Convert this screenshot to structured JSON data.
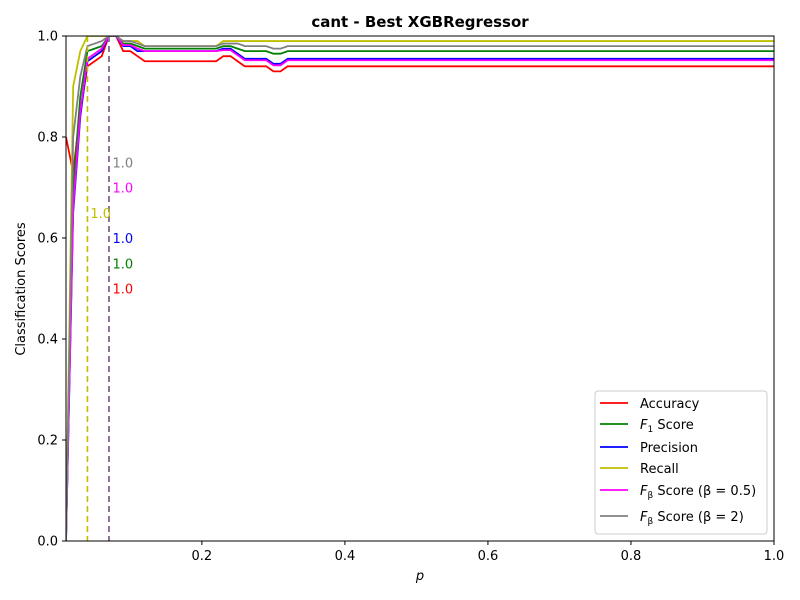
{
  "chart_data": {
    "type": "line",
    "title": "cant - Best XGBRegressor",
    "xlabel": "p",
    "ylabel": "Classification Scores",
    "xlim": [
      0.01,
      1.0
    ],
    "ylim": [
      0.0,
      1.0
    ],
    "x_ticks": [
      "0.2",
      "0.4",
      "0.6",
      "0.8",
      "1.0"
    ],
    "y_ticks": [
      "0.0",
      "0.2",
      "0.4",
      "0.6",
      "0.8",
      "1.0"
    ],
    "grid": false,
    "legend_position": "lower-right",
    "series": [
      {
        "name": "Accuracy",
        "color": "#ff0000",
        "points": [
          [
            0.01,
            0.8
          ],
          [
            0.02,
            0.73
          ],
          [
            0.03,
            0.85
          ],
          [
            0.04,
            0.94
          ],
          [
            0.05,
            0.95
          ],
          [
            0.06,
            0.96
          ],
          [
            0.07,
            1.0
          ],
          [
            0.08,
            1.0
          ],
          [
            0.09,
            0.97
          ],
          [
            0.1,
            0.97
          ],
          [
            0.11,
            0.96
          ],
          [
            0.12,
            0.95
          ],
          [
            0.15,
            0.95
          ],
          [
            0.2,
            0.95
          ],
          [
            0.22,
            0.95
          ],
          [
            0.23,
            0.96
          ],
          [
            0.24,
            0.96
          ],
          [
            0.25,
            0.95
          ],
          [
            0.26,
            0.94
          ],
          [
            0.29,
            0.94
          ],
          [
            0.3,
            0.93
          ],
          [
            0.31,
            0.93
          ],
          [
            0.32,
            0.94
          ],
          [
            0.4,
            0.94
          ],
          [
            0.6,
            0.94
          ],
          [
            0.8,
            0.94
          ],
          [
            1.0,
            0.94
          ]
        ]
      },
      {
        "name": "$F_1$ Score",
        "legend_label_main": "F",
        "legend_label_sub": "1",
        "legend_label_rest": " Score",
        "color": "#008000",
        "points": [
          [
            0.01,
            0.0
          ],
          [
            0.02,
            0.7
          ],
          [
            0.03,
            0.88
          ],
          [
            0.04,
            0.97
          ],
          [
            0.05,
            0.975
          ],
          [
            0.06,
            0.98
          ],
          [
            0.07,
            1.0
          ],
          [
            0.08,
            1.0
          ],
          [
            0.09,
            0.985
          ],
          [
            0.1,
            0.985
          ],
          [
            0.11,
            0.98
          ],
          [
            0.12,
            0.975
          ],
          [
            0.15,
            0.975
          ],
          [
            0.2,
            0.975
          ],
          [
            0.22,
            0.975
          ],
          [
            0.23,
            0.98
          ],
          [
            0.24,
            0.98
          ],
          [
            0.25,
            0.975
          ],
          [
            0.26,
            0.97
          ],
          [
            0.29,
            0.97
          ],
          [
            0.3,
            0.965
          ],
          [
            0.31,
            0.965
          ],
          [
            0.32,
            0.97
          ],
          [
            0.4,
            0.97
          ],
          [
            0.6,
            0.97
          ],
          [
            0.8,
            0.97
          ],
          [
            1.0,
            0.97
          ]
        ]
      },
      {
        "name": "Precision",
        "color": "#0000ff",
        "points": [
          [
            0.01,
            0.0
          ],
          [
            0.02,
            0.65
          ],
          [
            0.03,
            0.84
          ],
          [
            0.04,
            0.95
          ],
          [
            0.05,
            0.96
          ],
          [
            0.06,
            0.97
          ],
          [
            0.07,
            1.0
          ],
          [
            0.08,
            1.0
          ],
          [
            0.09,
            0.98
          ],
          [
            0.1,
            0.98
          ],
          [
            0.11,
            0.97
          ],
          [
            0.12,
            0.97
          ],
          [
            0.15,
            0.97
          ],
          [
            0.2,
            0.97
          ],
          [
            0.22,
            0.97
          ],
          [
            0.23,
            0.975
          ],
          [
            0.24,
            0.975
          ],
          [
            0.25,
            0.965
          ],
          [
            0.26,
            0.955
          ],
          [
            0.29,
            0.955
          ],
          [
            0.3,
            0.945
          ],
          [
            0.31,
            0.945
          ],
          [
            0.32,
            0.955
          ],
          [
            0.4,
            0.955
          ],
          [
            0.6,
            0.955
          ],
          [
            0.8,
            0.955
          ],
          [
            1.0,
            0.955
          ]
        ]
      },
      {
        "name": "Recall",
        "color": "#bfbf00",
        "points": [
          [
            0.01,
            0.0
          ],
          [
            0.02,
            0.9
          ],
          [
            0.03,
            0.97
          ],
          [
            0.04,
            1.0
          ],
          [
            0.05,
            1.0
          ],
          [
            0.06,
            1.0
          ],
          [
            0.07,
            1.0
          ],
          [
            0.08,
            1.0
          ],
          [
            0.09,
            0.99
          ],
          [
            0.1,
            0.99
          ],
          [
            0.11,
            0.99
          ],
          [
            0.12,
            0.98
          ],
          [
            0.15,
            0.98
          ],
          [
            0.2,
            0.98
          ],
          [
            0.22,
            0.98
          ],
          [
            0.23,
            0.99
          ],
          [
            0.24,
            0.99
          ],
          [
            0.25,
            0.99
          ],
          [
            0.26,
            0.99
          ],
          [
            0.29,
            0.99
          ],
          [
            0.3,
            0.99
          ],
          [
            0.31,
            0.99
          ],
          [
            0.32,
            0.99
          ],
          [
            0.4,
            0.99
          ],
          [
            0.6,
            0.99
          ],
          [
            0.8,
            0.99
          ],
          [
            1.0,
            0.99
          ]
        ]
      },
      {
        "name": "$F_\\beta$ Score ($\\beta=0.5$)",
        "legend_label_main": "F",
        "legend_label_sub": "β",
        "legend_label_rest": " Score (β = 0.5)",
        "color": "#ff00ff",
        "points": [
          [
            0.01,
            0.0
          ],
          [
            0.02,
            0.66
          ],
          [
            0.03,
            0.85
          ],
          [
            0.04,
            0.955
          ],
          [
            0.05,
            0.965
          ],
          [
            0.06,
            0.975
          ],
          [
            0.07,
            1.0
          ],
          [
            0.08,
            1.0
          ],
          [
            0.09,
            0.982
          ],
          [
            0.1,
            0.982
          ],
          [
            0.11,
            0.975
          ],
          [
            0.12,
            0.97
          ],
          [
            0.15,
            0.97
          ],
          [
            0.2,
            0.97
          ],
          [
            0.22,
            0.97
          ],
          [
            0.23,
            0.972
          ],
          [
            0.24,
            0.972
          ],
          [
            0.25,
            0.962
          ],
          [
            0.26,
            0.952
          ],
          [
            0.29,
            0.952
          ],
          [
            0.3,
            0.942
          ],
          [
            0.31,
            0.942
          ],
          [
            0.32,
            0.952
          ],
          [
            0.4,
            0.952
          ],
          [
            0.6,
            0.952
          ],
          [
            0.8,
            0.952
          ],
          [
            1.0,
            0.952
          ]
        ]
      },
      {
        "name": "$F_\\beta$ Score ($\\beta=2$)",
        "legend_label_main": "F",
        "legend_label_sub": "β",
        "legend_label_rest": " Score (β = 2)",
        "color": "#808080",
        "points": [
          [
            0.01,
            0.0
          ],
          [
            0.02,
            0.8
          ],
          [
            0.03,
            0.92
          ],
          [
            0.04,
            0.98
          ],
          [
            0.05,
            0.985
          ],
          [
            0.06,
            0.99
          ],
          [
            0.07,
            1.0
          ],
          [
            0.08,
            1.0
          ],
          [
            0.09,
            0.99
          ],
          [
            0.1,
            0.99
          ],
          [
            0.11,
            0.985
          ],
          [
            0.12,
            0.98
          ],
          [
            0.15,
            0.98
          ],
          [
            0.2,
            0.98
          ],
          [
            0.22,
            0.98
          ],
          [
            0.23,
            0.985
          ],
          [
            0.24,
            0.985
          ],
          [
            0.25,
            0.985
          ],
          [
            0.26,
            0.98
          ],
          [
            0.29,
            0.98
          ],
          [
            0.3,
            0.975
          ],
          [
            0.31,
            0.975
          ],
          [
            0.32,
            0.98
          ],
          [
            0.4,
            0.98
          ],
          [
            0.6,
            0.98
          ],
          [
            0.8,
            0.98
          ],
          [
            1.0,
            0.98
          ]
        ]
      }
    ],
    "vlines": [
      {
        "x": 0.04,
        "color": "#bfbf00"
      },
      {
        "x": 0.07,
        "color": "#0000ff"
      },
      {
        "x": 0.07,
        "color": "#ff00ff"
      },
      {
        "x": 0.07,
        "color": "#808080"
      }
    ],
    "annotations": [
      {
        "text": "1.0",
        "x": 0.075,
        "y": 0.75,
        "color": "#808080"
      },
      {
        "text": "1.0",
        "x": 0.075,
        "y": 0.7,
        "color": "#ff00ff"
      },
      {
        "text": "1.0",
        "x": 0.044,
        "y": 0.65,
        "color": "#bfbf00"
      },
      {
        "text": "1.0",
        "x": 0.075,
        "y": 0.6,
        "color": "#0000ff"
      },
      {
        "text": "1.0",
        "x": 0.075,
        "y": 0.55,
        "color": "#008000"
      },
      {
        "text": "1.0",
        "x": 0.075,
        "y": 0.5,
        "color": "#ff0000"
      }
    ]
  }
}
